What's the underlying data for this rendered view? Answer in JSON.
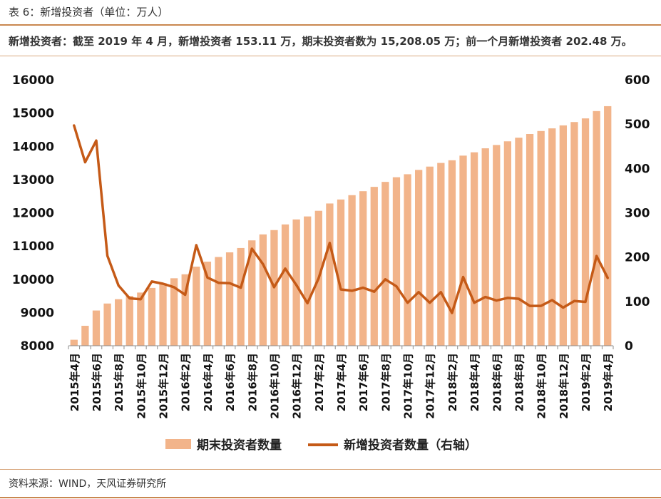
{
  "caption": "表 6：新增投资者（单位：万人）",
  "summary": "新增投资者：截至 2019 年 4 月，新增投资者 153.11 万，期末投资者数为 15,208.05 万；前一个月新增投资者 202.48 万。",
  "source": "资料来源：WIND，天风证券研究所",
  "colors": {
    "bar": "#f2b48a",
    "line": "#c55a17",
    "rule": "#c9874f"
  },
  "chart_data": {
    "type": "bar+line",
    "categories": [
      "2015年4月",
      "2015年5月",
      "2015年6月",
      "2015年7月",
      "2015年8月",
      "2015年9月",
      "2015年10月",
      "2015年11月",
      "2015年12月",
      "2016年1月",
      "2016年2月",
      "2016年3月",
      "2016年4月",
      "2016年5月",
      "2016年6月",
      "2016年7月",
      "2016年8月",
      "2016年9月",
      "2016年10月",
      "2016年11月",
      "2016年12月",
      "2017年1月",
      "2017年2月",
      "2017年3月",
      "2017年4月",
      "2017年5月",
      "2017年6月",
      "2017年7月",
      "2017年8月",
      "2017年9月",
      "2017年10月",
      "2017年11月",
      "2017年12月",
      "2018年1月",
      "2018年2月",
      "2018年3月",
      "2018年4月",
      "2018年5月",
      "2018年6月",
      "2018年7月",
      "2018年8月",
      "2018年9月",
      "2018年10月",
      "2018年11月",
      "2018年12月",
      "2019年1月",
      "2019年2月",
      "2019年3月",
      "2019年4月"
    ],
    "tick_labels": [
      "2015年4月",
      "2015年6月",
      "2015年8月",
      "2015年10月",
      "2015年12月",
      "2016年2月",
      "2016年4月",
      "2016年6月",
      "2016年8月",
      "2016年10月",
      "2016年12月",
      "2017年2月",
      "2017年4月",
      "2017年6月",
      "2017年8月",
      "2017年10月",
      "2017年12月",
      "2018年2月",
      "2018年4月",
      "2018年6月",
      "2018年8月",
      "2018年10月",
      "2018年12月",
      "2019年2月",
      "2019年4月"
    ],
    "series": [
      {
        "name": "期末投资者数量",
        "type": "bar",
        "axis": "left",
        "values": [
          8180,
          8600,
          9060,
          9270,
          9400,
          9500,
          9600,
          9740,
          9880,
          10030,
          10150,
          10380,
          10530,
          10670,
          10810,
          10940,
          11170,
          11350,
          11480,
          11650,
          11800,
          11890,
          12060,
          12280,
          12400,
          12530,
          12650,
          12780,
          12930,
          13070,
          13160,
          13290,
          13390,
          13500,
          13580,
          13720,
          13820,
          13940,
          14040,
          14150,
          14260,
          14370,
          14460,
          14540,
          14630,
          14730,
          14840,
          15060,
          15208.05
        ]
      },
      {
        "name": "新增投资者数量（右轴）",
        "type": "line",
        "axis": "right",
        "values": [
          497,
          414,
          463,
          203,
          136,
          107,
          105,
          145,
          140,
          132,
          115,
          227,
          154,
          142,
          141,
          131,
          219,
          184,
          132,
          174,
          137,
          96,
          152,
          232,
          127,
          124,
          131,
          122,
          150,
          134,
          97,
          121,
          97,
          121,
          74,
          155,
          97,
          110,
          102,
          108,
          106,
          90,
          90,
          103,
          86,
          101,
          99,
          202.48,
          153.11
        ]
      }
    ],
    "y_left": {
      "min": 8000,
      "max": 16000,
      "ticks": [
        8000,
        9000,
        10000,
        11000,
        12000,
        13000,
        14000,
        15000,
        16000
      ]
    },
    "y_right": {
      "min": 0,
      "max": 600,
      "ticks": [
        0,
        100,
        200,
        300,
        400,
        500,
        600
      ]
    },
    "legend": {
      "position": "bottom",
      "items": [
        "期末投资者数量",
        "新增投资者数量（右轴）"
      ]
    },
    "grid": false
  }
}
